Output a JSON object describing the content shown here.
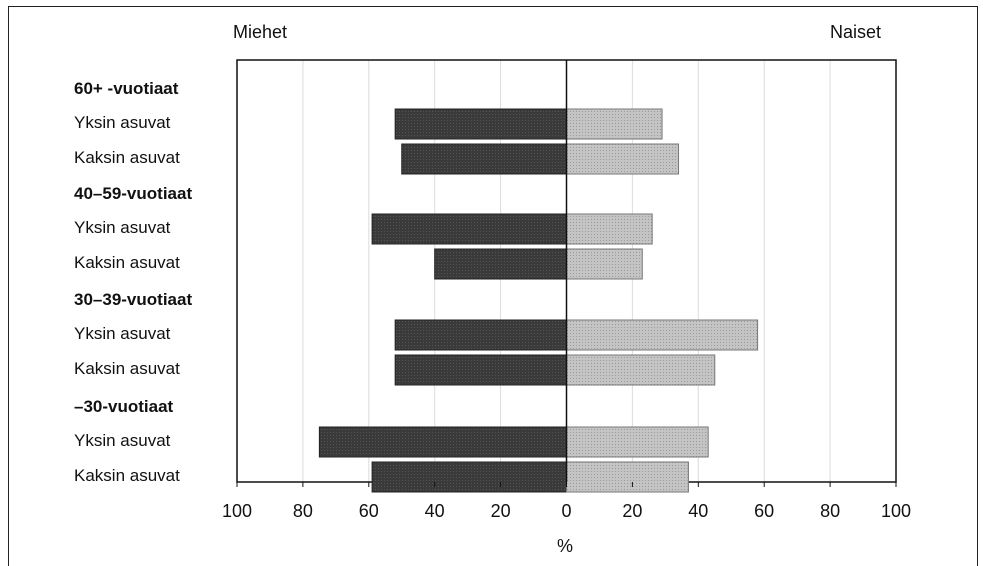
{
  "chart_data": {
    "type": "bar",
    "orientation": "horizontal",
    "layout": "diverging",
    "left_label": "Miehet",
    "right_label": "Naiset",
    "xlabel": "%",
    "xlim": [
      -100,
      100
    ],
    "x_ticks": [
      "100",
      "80",
      "60",
      "40",
      "20",
      "0",
      "20",
      "40",
      "60",
      "80",
      "100"
    ],
    "grid": true,
    "groups": [
      {
        "label": "60+ -vuotiaat",
        "rows": [
          {
            "label": "Yksin asuvat",
            "men": 52,
            "women": 29
          },
          {
            "label": "Kaksin asuvat",
            "men": 50,
            "women": 34
          }
        ]
      },
      {
        "label": "40–59-vuotiaat",
        "rows": [
          {
            "label": "Yksin asuvat",
            "men": 59,
            "women": 26
          },
          {
            "label": "Kaksin asuvat",
            "men": 40,
            "women": 23
          }
        ]
      },
      {
        "label": "30–39-vuotiaat",
        "rows": [
          {
            "label": "Yksin asuvat",
            "men": 52,
            "women": 58
          },
          {
            "label": "Kaksin asuvat",
            "men": 52,
            "women": 45
          }
        ]
      },
      {
        "label": "–30-vuotiaat",
        "rows": [
          {
            "label": "Yksin asuvat",
            "men": 75,
            "women": 43
          },
          {
            "label": "Kaksin asuvat",
            "men": 59,
            "women": 37
          }
        ]
      }
    ],
    "colors": {
      "men": "#3a3a3a",
      "women": "#c4c4c4"
    }
  }
}
